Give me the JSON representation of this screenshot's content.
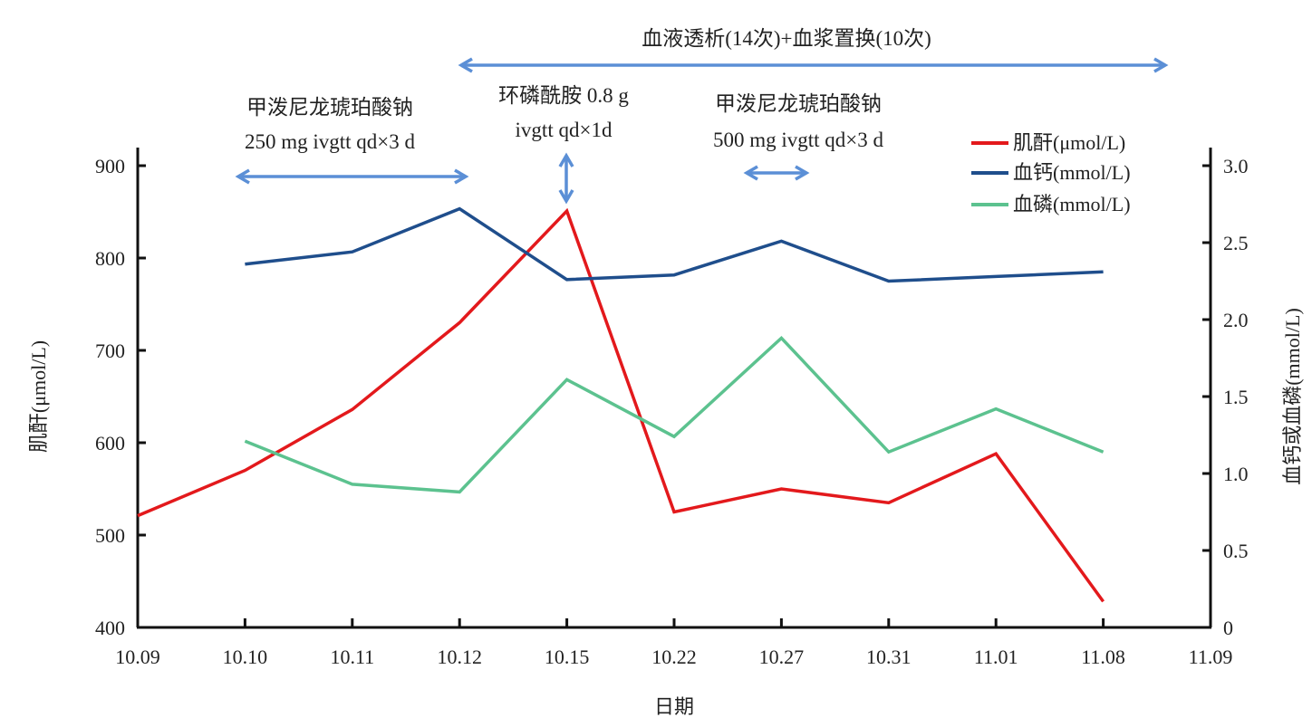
{
  "chart_data": {
    "type": "line",
    "title": "",
    "xlabel": "日期",
    "ylabel_left": "肌酐(μmol/L)",
    "ylabel_right": "血钙或血磷(mmol/L)",
    "categories": [
      "10.09",
      "10.10",
      "10.11",
      "10.12",
      "10.15",
      "10.22",
      "10.27",
      "10.31",
      "11.01",
      "11.08",
      "11.09"
    ],
    "y_left": {
      "range": [
        400,
        900
      ],
      "ticks": [
        "400",
        "500",
        "600",
        "700",
        "800",
        "900"
      ],
      "tick_values": [
        400,
        500,
        600,
        700,
        800,
        900
      ]
    },
    "y_right": {
      "range": [
        0,
        3.0
      ],
      "ticks": [
        "0",
        "0.5",
        "1.0",
        "1.5",
        "2.0",
        "2.5",
        "3.0"
      ],
      "tick_values": [
        0,
        0.5,
        1.0,
        1.5,
        2.0,
        2.5,
        3.0
      ]
    },
    "grid": false,
    "legend_position": "top-right",
    "series": [
      {
        "name": "肌酐(μmol/L)",
        "axis": "left",
        "color": "#e3191c",
        "x": [
          "10.09",
          "10.10",
          "10.11",
          "10.12",
          "10.15",
          "10.22",
          "10.27",
          "10.31",
          "11.01",
          "11.08"
        ],
        "values": [
          521,
          570,
          636,
          730,
          851,
          525,
          550,
          535,
          588,
          428
        ]
      },
      {
        "name": "血钙(mmol/L)",
        "axis": "right",
        "color": "#1f4e8c",
        "x": [
          "10.10",
          "10.11",
          "10.12",
          "10.15",
          "10.22",
          "10.27",
          "10.31",
          "11.01",
          "11.08"
        ],
        "values": [
          2.36,
          2.44,
          2.72,
          2.26,
          2.29,
          2.51,
          2.25,
          2.28,
          2.31
        ]
      },
      {
        "name": "血磷(mmol/L)",
        "axis": "right",
        "color": "#5cc28f",
        "x": [
          "10.10",
          "10.11",
          "10.12",
          "10.15",
          "10.22",
          "10.27",
          "10.31",
          "11.01",
          "11.08"
        ],
        "values": [
          1.21,
          0.93,
          0.88,
          1.61,
          1.24,
          1.88,
          1.14,
          1.42,
          1.14
        ]
      }
    ],
    "annotations": [
      {
        "id": "dialysis",
        "lines": [
          "血液透析(14次)+血浆置换(10次)"
        ],
        "arrow": "horizontal",
        "from": "10.12",
        "to": "11.09"
      },
      {
        "id": "mp250",
        "lines": [
          "甲泼尼龙琥珀酸钠",
          "250 mg ivgtt qd×3 d"
        ],
        "arrow": "horizontal",
        "from": "10.10",
        "to": "10.12"
      },
      {
        "id": "ctx",
        "lines": [
          "环磷酰胺 0.8 g",
          "ivgtt qd×1d"
        ],
        "arrow": "vertical",
        "at": "10.15"
      },
      {
        "id": "mp500",
        "lines": [
          "甲泼尼龙琥珀酸钠",
          "500 mg ivgtt qd×3 d"
        ],
        "arrow": "horizontal",
        "from": "10.22",
        "to": "10.27"
      }
    ],
    "annotation_arrow_color": "#5b8fd6"
  }
}
